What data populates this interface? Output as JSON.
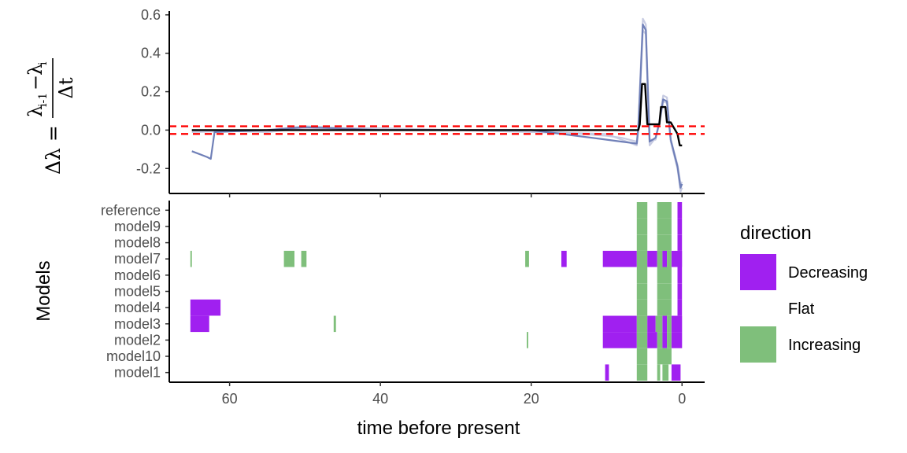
{
  "chart_data": [
    {
      "type": "line",
      "panel": "top",
      "ylabel_parts": {
        "lhs": "Δλ =",
        "num_lambda1": "λ",
        "num_sub1": "i-1",
        "num_minus": "−",
        "num_lambda2": "λ",
        "num_sub2": "i",
        "den": "Δt"
      },
      "xlim": [
        68,
        -3
      ],
      "ylim": [
        -0.33,
        0.62
      ],
      "yticks": [
        -0.2,
        0.0,
        0.2,
        0.4,
        0.6
      ],
      "ytick_labels": [
        "-0.2",
        "0.0",
        "0.2",
        "0.4",
        "0.6"
      ],
      "xticks": [
        60,
        40,
        20,
        0
      ],
      "hlines": [
        0.02,
        -0.02
      ],
      "hline_color": "#ff0000",
      "series": [
        {
          "role": "ensemble",
          "color": "#c7cbe2",
          "values": [
            [
              65,
              -0.01
            ],
            [
              55,
              0.0
            ],
            [
              50,
              0.02
            ],
            [
              40,
              0.0
            ],
            [
              20,
              0.0
            ],
            [
              10,
              -0.03
            ],
            [
              8,
              -0.04
            ],
            [
              6,
              -0.06
            ],
            [
              5.8,
              0.02
            ],
            [
              5.2,
              0.58
            ],
            [
              4.8,
              0.55
            ],
            [
              4.3,
              -0.05
            ],
            [
              3.5,
              -0.05
            ],
            [
              3,
              0.05
            ],
            [
              2.5,
              0.18
            ],
            [
              2,
              0.17
            ],
            [
              1.5,
              -0.06
            ],
            [
              0.6,
              -0.2
            ],
            [
              0.2,
              -0.32
            ],
            [
              0,
              -0.3
            ]
          ]
        },
        {
          "role": "ensemble",
          "color": "#c7cbe2",
          "values": [
            [
              65,
              0.0
            ],
            [
              55,
              -0.01
            ],
            [
              50,
              0.01
            ],
            [
              40,
              0.01
            ],
            [
              20,
              -0.01
            ],
            [
              10,
              -0.02
            ],
            [
              8,
              -0.05
            ],
            [
              6,
              -0.08
            ],
            [
              5.8,
              0.0
            ],
            [
              5.2,
              0.52
            ],
            [
              4.8,
              0.5
            ],
            [
              4.3,
              -0.08
            ],
            [
              3.5,
              -0.04
            ],
            [
              3,
              0.03
            ],
            [
              2.5,
              0.15
            ],
            [
              2,
              0.14
            ],
            [
              1.5,
              -0.05
            ],
            [
              0.6,
              -0.18
            ],
            [
              0.2,
              -0.28
            ],
            [
              0,
              -0.27
            ]
          ]
        },
        {
          "role": "ensemble",
          "color": "#7080b8",
          "values": [
            [
              65,
              -0.11
            ],
            [
              63,
              -0.14
            ],
            [
              62.5,
              -0.15
            ],
            [
              62,
              -0.01
            ],
            [
              55,
              0.0
            ],
            [
              50,
              0.015
            ],
            [
              40,
              0.0
            ],
            [
              20,
              0.0
            ],
            [
              10,
              -0.05
            ],
            [
              8,
              -0.06
            ],
            [
              6,
              -0.07
            ],
            [
              5.8,
              0.01
            ],
            [
              5.2,
              0.55
            ],
            [
              4.8,
              0.52
            ],
            [
              4.3,
              -0.06
            ],
            [
              3.5,
              -0.04
            ],
            [
              3,
              0.04
            ],
            [
              2.5,
              0.16
            ],
            [
              2,
              0.15
            ],
            [
              1.5,
              -0.05
            ],
            [
              0.6,
              -0.19
            ],
            [
              0.2,
              -0.3
            ],
            [
              0,
              -0.28
            ]
          ]
        },
        {
          "role": "reference",
          "color": "#000000",
          "values": [
            [
              65,
              0.0
            ],
            [
              10,
              0.0
            ],
            [
              5.8,
              0.0
            ],
            [
              5.6,
              0.03
            ],
            [
              5.3,
              0.24
            ],
            [
              4.9,
              0.24
            ],
            [
              4.6,
              0.03
            ],
            [
              3,
              0.03
            ],
            [
              2.8,
              0.12
            ],
            [
              2.2,
              0.12
            ],
            [
              2.0,
              0.04
            ],
            [
              1.5,
              0.04
            ],
            [
              0.6,
              -0.02
            ],
            [
              0.3,
              -0.08
            ],
            [
              0,
              -0.08
            ]
          ]
        }
      ]
    },
    {
      "type": "heatmap",
      "panel": "bottom",
      "xlabel": "time before present",
      "ylabel": "Models",
      "xlim": [
        68,
        -3
      ],
      "xticks": [
        60,
        40,
        20,
        0
      ],
      "xtick_labels": [
        "60",
        "40",
        "20",
        "0"
      ],
      "rows": [
        "model1",
        "model10",
        "model2",
        "model3",
        "model4",
        "model5",
        "model6",
        "model7",
        "model8",
        "model9",
        "reference"
      ],
      "colors": {
        "Decreasing": "#a020f0",
        "Flat": "#ffffff",
        "Increasing": "#7fbf7b"
      },
      "legend": {
        "title": "direction",
        "entries": [
          {
            "label": "Decreasing",
            "color": "#a020f0"
          },
          {
            "label": "Flat",
            "color": "#ffffff"
          },
          {
            "label": "Increasing",
            "color": "#7fbf7b"
          }
        ]
      },
      "segments": [
        {
          "row": "reference",
          "t0": 6.0,
          "t1": 4.6,
          "dir": "Increasing"
        },
        {
          "row": "reference",
          "t0": 3.3,
          "t1": 1.4,
          "dir": "Increasing"
        },
        {
          "row": "reference",
          "t0": 0.6,
          "t1": 0.0,
          "dir": "Decreasing"
        },
        {
          "row": "model9",
          "t0": 6.0,
          "t1": 4.6,
          "dir": "Increasing"
        },
        {
          "row": "model9",
          "t0": 3.3,
          "t1": 1.4,
          "dir": "Increasing"
        },
        {
          "row": "model9",
          "t0": 0.6,
          "t1": 0.0,
          "dir": "Decreasing"
        },
        {
          "row": "model8",
          "t0": 6.0,
          "t1": 4.6,
          "dir": "Increasing"
        },
        {
          "row": "model8",
          "t0": 3.3,
          "t1": 1.4,
          "dir": "Increasing"
        },
        {
          "row": "model8",
          "t0": 0.6,
          "t1": 0.0,
          "dir": "Decreasing"
        },
        {
          "row": "model7",
          "t0": 65.2,
          "t1": 65.0,
          "dir": "Increasing"
        },
        {
          "row": "model7",
          "t0": 52.8,
          "t1": 51.4,
          "dir": "Increasing"
        },
        {
          "row": "model7",
          "t0": 50.5,
          "t1": 49.8,
          "dir": "Increasing"
        },
        {
          "row": "model7",
          "t0": 20.8,
          "t1": 20.3,
          "dir": "Increasing"
        },
        {
          "row": "model7",
          "t0": 16.0,
          "t1": 15.3,
          "dir": "Decreasing"
        },
        {
          "row": "model7",
          "t0": 10.5,
          "t1": 6.0,
          "dir": "Decreasing"
        },
        {
          "row": "model7",
          "t0": 6.0,
          "t1": 4.6,
          "dir": "Increasing"
        },
        {
          "row": "model7",
          "t0": 4.6,
          "t1": 3.3,
          "dir": "Decreasing"
        },
        {
          "row": "model7",
          "t0": 3.3,
          "t1": 2.6,
          "dir": "Increasing"
        },
        {
          "row": "model7",
          "t0": 2.6,
          "t1": 2.0,
          "dir": "Decreasing"
        },
        {
          "row": "model7",
          "t0": 2.0,
          "t1": 1.4,
          "dir": "Increasing"
        },
        {
          "row": "model7",
          "t0": 1.4,
          "t1": 0.0,
          "dir": "Decreasing"
        },
        {
          "row": "model6",
          "t0": 6.0,
          "t1": 4.6,
          "dir": "Increasing"
        },
        {
          "row": "model6",
          "t0": 3.3,
          "t1": 1.4,
          "dir": "Increasing"
        },
        {
          "row": "model6",
          "t0": 0.6,
          "t1": 0.0,
          "dir": "Decreasing"
        },
        {
          "row": "model5",
          "t0": 6.0,
          "t1": 4.6,
          "dir": "Increasing"
        },
        {
          "row": "model5",
          "t0": 3.3,
          "t1": 1.4,
          "dir": "Increasing"
        },
        {
          "row": "model5",
          "t0": 0.6,
          "t1": 0.0,
          "dir": "Decreasing"
        },
        {
          "row": "model4",
          "t0": 65.2,
          "t1": 61.2,
          "dir": "Decreasing"
        },
        {
          "row": "model4",
          "t0": 6.0,
          "t1": 4.6,
          "dir": "Increasing"
        },
        {
          "row": "model4",
          "t0": 3.3,
          "t1": 1.4,
          "dir": "Increasing"
        },
        {
          "row": "model4",
          "t0": 0.6,
          "t1": 0.0,
          "dir": "Decreasing"
        },
        {
          "row": "model3",
          "t0": 65.2,
          "t1": 62.7,
          "dir": "Decreasing"
        },
        {
          "row": "model3",
          "t0": 46.2,
          "t1": 45.9,
          "dir": "Increasing"
        },
        {
          "row": "model3",
          "t0": 10.5,
          "t1": 6.0,
          "dir": "Decreasing"
        },
        {
          "row": "model3",
          "t0": 6.0,
          "t1": 4.6,
          "dir": "Increasing"
        },
        {
          "row": "model3",
          "t0": 4.6,
          "t1": 3.5,
          "dir": "Decreasing"
        },
        {
          "row": "model3",
          "t0": 3.5,
          "t1": 2.6,
          "dir": "Increasing"
        },
        {
          "row": "model3",
          "t0": 2.6,
          "t1": 2.0,
          "dir": "Decreasing"
        },
        {
          "row": "model3",
          "t0": 2.0,
          "t1": 1.4,
          "dir": "Increasing"
        },
        {
          "row": "model3",
          "t0": 1.4,
          "t1": 0.0,
          "dir": "Decreasing"
        },
        {
          "row": "model2",
          "t0": 20.6,
          "t1": 20.4,
          "dir": "Increasing"
        },
        {
          "row": "model2",
          "t0": 10.5,
          "t1": 6.0,
          "dir": "Decreasing"
        },
        {
          "row": "model2",
          "t0": 6.0,
          "t1": 4.6,
          "dir": "Increasing"
        },
        {
          "row": "model2",
          "t0": 4.6,
          "t1": 3.3,
          "dir": "Decreasing"
        },
        {
          "row": "model2",
          "t0": 3.3,
          "t1": 2.6,
          "dir": "Increasing"
        },
        {
          "row": "model2",
          "t0": 2.6,
          "t1": 2.0,
          "dir": "Decreasing"
        },
        {
          "row": "model2",
          "t0": 2.0,
          "t1": 1.4,
          "dir": "Increasing"
        },
        {
          "row": "model2",
          "t0": 1.4,
          "t1": 0.0,
          "dir": "Decreasing"
        },
        {
          "row": "model10",
          "t0": 6.0,
          "t1": 4.6,
          "dir": "Increasing"
        },
        {
          "row": "model10",
          "t0": 3.3,
          "t1": 1.4,
          "dir": "Increasing"
        },
        {
          "row": "model1",
          "t0": 10.2,
          "t1": 9.7,
          "dir": "Decreasing"
        },
        {
          "row": "model1",
          "t0": 6.0,
          "t1": 4.6,
          "dir": "Increasing"
        },
        {
          "row": "model1",
          "t0": 3.3,
          "t1": 2.9,
          "dir": "Increasing"
        },
        {
          "row": "model1",
          "t0": 2.6,
          "t1": 1.8,
          "dir": "Increasing"
        },
        {
          "row": "model1",
          "t0": 1.4,
          "t1": 0.2,
          "dir": "Decreasing"
        }
      ]
    }
  ]
}
